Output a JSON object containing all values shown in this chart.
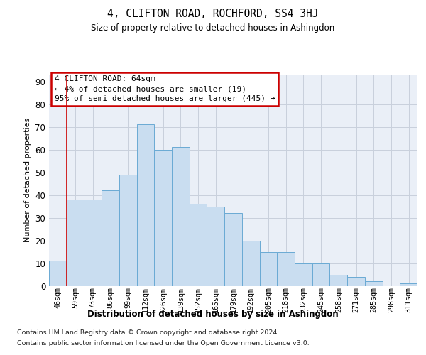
{
  "title": "4, CLIFTON ROAD, ROCHFORD, SS4 3HJ",
  "subtitle": "Size of property relative to detached houses in Ashingdon",
  "xlabel": "Distribution of detached houses by size in Ashingdon",
  "ylabel": "Number of detached properties",
  "categories": [
    "46sqm",
    "59sqm",
    "73sqm",
    "86sqm",
    "99sqm",
    "112sqm",
    "126sqm",
    "139sqm",
    "152sqm",
    "165sqm",
    "179sqm",
    "192sqm",
    "205sqm",
    "218sqm",
    "232sqm",
    "245sqm",
    "258sqm",
    "271sqm",
    "285sqm",
    "298sqm",
    "311sqm"
  ],
  "values": [
    11,
    38,
    38,
    42,
    49,
    71,
    60,
    61,
    36,
    35,
    32,
    20,
    15,
    15,
    10,
    10,
    5,
    4,
    2,
    0,
    1
  ],
  "bar_color": "#c9ddf0",
  "bar_edge_color": "#6aaad4",
  "grid_color": "#c8d0dc",
  "background_color": "#eaeff7",
  "annotation_text": "4 CLIFTON ROAD: 64sqm\n← 4% of detached houses are smaller (19)\n95% of semi-detached houses are larger (445) →",
  "annotation_box_color": "#ffffff",
  "annotation_box_edge": "#cc0000",
  "redline_x": 0.5,
  "ylim": [
    0,
    93
  ],
  "yticks": [
    0,
    10,
    20,
    30,
    40,
    50,
    60,
    70,
    80,
    90
  ],
  "footer_line1": "Contains HM Land Registry data © Crown copyright and database right 2024.",
  "footer_line2": "Contains public sector information licensed under the Open Government Licence v3.0."
}
